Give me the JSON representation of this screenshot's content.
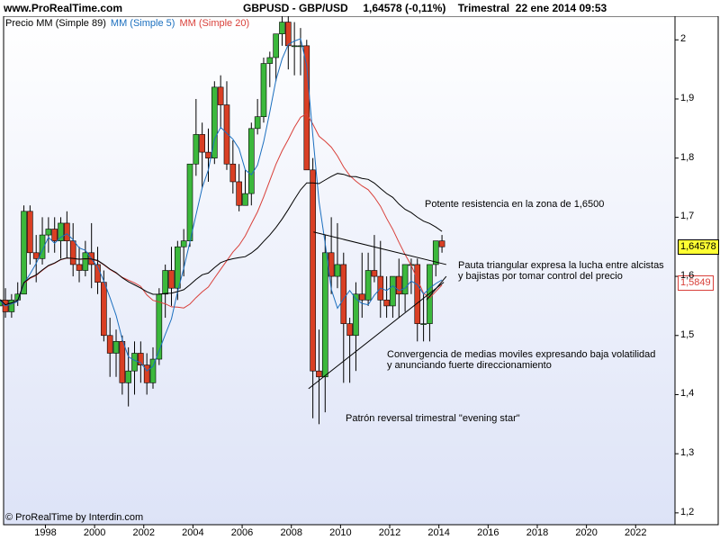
{
  "header": {
    "site": "www.ProRealTime.com",
    "title": "GBPUSD - GBP/USD     1,64578 (-0,11%)    Trimestral  22 ene 2014 09:53"
  },
  "legend": {
    "price_label": "Precio MM (Simple 89)",
    "ma5_label": "MM (Simple 5)",
    "ma20_label": "MM (Simple 20)"
  },
  "colors": {
    "plot_bg_top": "#ffffff",
    "plot_bg_bottom": "#dde3f7",
    "candle_up": "#3cb83c",
    "candle_down": "#d93f24",
    "ma5": "#1b6fbf",
    "ma20": "#d9403a",
    "ma89": "#000000",
    "price_box_bg": "#ffff33",
    "ma20_box": "#d9403a",
    "ma5_box": "#1b6fbf"
  },
  "price_boxes": {
    "current": "1,64578",
    "ma20_value": "1,5849"
  },
  "annotations": {
    "resistance": "Potente resistencia en la zona de 1,6500",
    "triangle_line1": "Pauta triangular expresa la lucha entre alcistas",
    "triangle_line2": "y bajistas por tomar control del precio",
    "convergence_line1": "Convergencia de medias moviles expresando baja volatilidad",
    "convergence_line2": "y anunciando fuerte direccionamiento",
    "evening_star": "Patrón reversal trimestral \"evening star\""
  },
  "copyright": "© ProRealTime by Interdin.com",
  "chart_data": {
    "type": "candlestick",
    "title": "GBPUSD - GBP/USD",
    "timeframe": "Trimestral",
    "last_price": 1.64578,
    "change_pct": -0.11,
    "date": "22 ene 2014 09:53",
    "x_ticks": [
      "1998",
      "2000",
      "2002",
      "2004",
      "2006",
      "2008",
      "2010",
      "2012",
      "2014",
      "2016",
      "2018",
      "2020",
      "2022"
    ],
    "y_ticks": [
      "1,2",
      "1,3",
      "1,4",
      "1,5",
      "1,6",
      "1,7",
      "1,8",
      "1,9",
      "2"
    ],
    "ylim": [
      1.18,
      2.04
    ],
    "xlim": [
      1996.3,
      2023.6
    ],
    "grid": false,
    "series": [
      {
        "name": "MM (Simple 5)",
        "style": "line"
      },
      {
        "name": "MM (Simple 20)",
        "style": "line"
      },
      {
        "name": "MM (Simple 89)",
        "style": "line"
      }
    ],
    "candles": [
      [
        1996.0,
        1.55,
        1.56,
        1.53,
        1.57
      ],
      [
        1996.25,
        1.56,
        1.54,
        1.53,
        1.58
      ],
      [
        1996.5,
        1.54,
        1.56,
        1.53,
        1.57
      ],
      [
        1996.75,
        1.56,
        1.57,
        1.55,
        1.59
      ],
      [
        1997.0,
        1.57,
        1.71,
        1.57,
        1.72
      ],
      [
        1997.25,
        1.71,
        1.64,
        1.62,
        1.72
      ],
      [
        1997.5,
        1.64,
        1.63,
        1.59,
        1.67
      ],
      [
        1997.75,
        1.63,
        1.67,
        1.62,
        1.7
      ],
      [
        1998.0,
        1.67,
        1.68,
        1.64,
        1.7
      ],
      [
        1998.25,
        1.68,
        1.66,
        1.64,
        1.7
      ],
      [
        1998.5,
        1.66,
        1.69,
        1.63,
        1.7
      ],
      [
        1998.75,
        1.69,
        1.66,
        1.63,
        1.71
      ],
      [
        1999.0,
        1.66,
        1.62,
        1.6,
        1.69
      ],
      [
        1999.25,
        1.62,
        1.61,
        1.59,
        1.65
      ],
      [
        1999.5,
        1.61,
        1.64,
        1.6,
        1.66
      ],
      [
        1999.75,
        1.64,
        1.62,
        1.58,
        1.69
      ],
      [
        2000.0,
        1.62,
        1.59,
        1.57,
        1.65
      ],
      [
        2000.25,
        1.59,
        1.5,
        1.49,
        1.61
      ],
      [
        2000.5,
        1.5,
        1.47,
        1.43,
        1.53
      ],
      [
        2000.75,
        1.47,
        1.49,
        1.43,
        1.51
      ],
      [
        2001.0,
        1.49,
        1.42,
        1.4,
        1.5
      ],
      [
        2001.25,
        1.42,
        1.44,
        1.38,
        1.48
      ],
      [
        2001.5,
        1.44,
        1.47,
        1.4,
        1.49
      ],
      [
        2001.75,
        1.47,
        1.45,
        1.42,
        1.49
      ],
      [
        2002.0,
        1.45,
        1.42,
        1.4,
        1.47
      ],
      [
        2002.25,
        1.42,
        1.46,
        1.41,
        1.48
      ],
      [
        2002.5,
        1.46,
        1.57,
        1.45,
        1.58
      ],
      [
        2002.75,
        1.57,
        1.61,
        1.53,
        1.62
      ],
      [
        2003.0,
        1.61,
        1.58,
        1.55,
        1.65
      ],
      [
        2003.25,
        1.58,
        1.65,
        1.56,
        1.66
      ],
      [
        2003.5,
        1.65,
        1.66,
        1.6,
        1.68
      ],
      [
        2003.75,
        1.66,
        1.79,
        1.65,
        1.79
      ],
      [
        2004.0,
        1.79,
        1.84,
        1.77,
        1.9
      ],
      [
        2004.25,
        1.84,
        1.81,
        1.75,
        1.86
      ],
      [
        2004.5,
        1.81,
        1.8,
        1.76,
        1.85
      ],
      [
        2004.75,
        1.8,
        1.92,
        1.79,
        1.93
      ],
      [
        2005.0,
        1.92,
        1.89,
        1.85,
        1.94
      ],
      [
        2005.25,
        1.89,
        1.79,
        1.78,
        1.93
      ],
      [
        2005.5,
        1.79,
        1.76,
        1.74,
        1.83
      ],
      [
        2005.75,
        1.76,
        1.72,
        1.71,
        1.79
      ],
      [
        2006.0,
        1.72,
        1.74,
        1.72,
        1.78
      ],
      [
        2006.25,
        1.74,
        1.85,
        1.72,
        1.86
      ],
      [
        2006.5,
        1.85,
        1.87,
        1.84,
        1.9
      ],
      [
        2006.75,
        1.87,
        1.96,
        1.86,
        1.97
      ],
      [
        2007.0,
        1.96,
        1.97,
        1.92,
        1.98
      ],
      [
        2007.25,
        1.97,
        2.01,
        1.93,
        2.01
      ],
      [
        2007.5,
        2.01,
        2.03,
        1.99,
        2.06
      ],
      [
        2007.75,
        2.03,
        1.99,
        1.95,
        2.1
      ],
      [
        2008.0,
        1.99,
        1.99,
        1.94,
        2.03
      ],
      [
        2008.25,
        1.99,
        1.99,
        1.94,
        2.02
      ],
      [
        2008.5,
        1.99,
        1.78,
        1.78,
        2.0
      ],
      [
        2008.75,
        1.78,
        1.44,
        1.36,
        1.8
      ],
      [
        2009.0,
        1.44,
        1.43,
        1.35,
        1.51
      ],
      [
        2009.25,
        1.43,
        1.64,
        1.37,
        1.67
      ],
      [
        2009.5,
        1.64,
        1.6,
        1.57,
        1.7
      ],
      [
        2009.75,
        1.6,
        1.62,
        1.58,
        1.69
      ],
      [
        2010.0,
        1.62,
        1.52,
        1.42,
        1.64
      ],
      [
        2010.25,
        1.52,
        1.5,
        1.42,
        1.53
      ],
      [
        2010.5,
        1.5,
        1.57,
        1.44,
        1.59
      ],
      [
        2010.75,
        1.57,
        1.56,
        1.53,
        1.64
      ],
      [
        2011.0,
        1.56,
        1.61,
        1.55,
        1.64
      ],
      [
        2011.25,
        1.61,
        1.6,
        1.59,
        1.67
      ],
      [
        2011.5,
        1.6,
        1.56,
        1.53,
        1.66
      ],
      [
        2011.75,
        1.56,
        1.55,
        1.53,
        1.6
      ],
      [
        2012.0,
        1.55,
        1.6,
        1.53,
        1.6
      ],
      [
        2012.25,
        1.6,
        1.57,
        1.53,
        1.63
      ],
      [
        2012.5,
        1.57,
        1.62,
        1.54,
        1.62
      ],
      [
        2012.75,
        1.62,
        1.62,
        1.57,
        1.63
      ],
      [
        2013.0,
        1.62,
        1.52,
        1.49,
        1.63
      ],
      [
        2013.25,
        1.52,
        1.52,
        1.49,
        1.57
      ],
      [
        2013.5,
        1.52,
        1.62,
        1.49,
        1.62
      ],
      [
        2013.75,
        1.62,
        1.66,
        1.6,
        1.66
      ],
      [
        2014.0,
        1.66,
        1.65,
        1.64,
        1.67
      ]
    ]
  }
}
